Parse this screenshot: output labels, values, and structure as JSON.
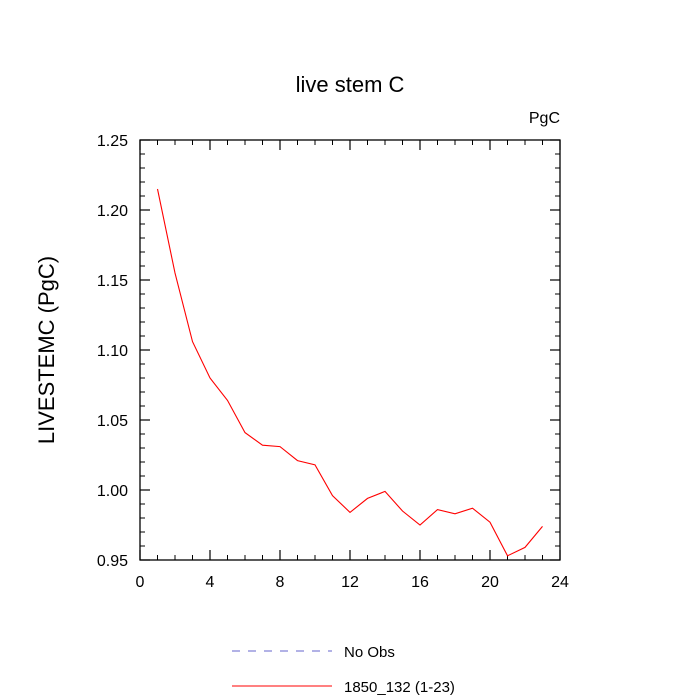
{
  "chart_data": {
    "type": "line",
    "title": "live stem C",
    "units_label": "PgC",
    "ylabel": "LIVESTEMC  (PgC)",
    "xlabel": "",
    "xlim": [
      0,
      24
    ],
    "ylim": [
      0.95,
      1.25
    ],
    "x_ticks": [
      0,
      4,
      8,
      12,
      16,
      20,
      24
    ],
    "y_ticks": [
      0.95,
      1.0,
      1.05,
      1.1,
      1.15,
      1.2,
      1.25
    ],
    "x_tick_labels": [
      "0",
      "4",
      "8",
      "12",
      "16",
      "20",
      "24"
    ],
    "y_tick_labels": [
      "0.95",
      "1.00",
      "1.05",
      "1.10",
      "1.15",
      "1.20",
      "1.25"
    ],
    "grid": false,
    "legend_position": "bottom",
    "series": [
      {
        "name": "1850_132 (1-23)",
        "color": "#ff0000",
        "dash": "solid",
        "x": [
          1,
          2,
          3,
          4,
          5,
          6,
          7,
          8,
          9,
          10,
          11,
          12,
          13,
          14,
          15,
          16,
          17,
          18,
          19,
          20,
          21,
          22,
          23
        ],
        "y": [
          1.215,
          1.155,
          1.106,
          1.08,
          1.064,
          1.041,
          1.032,
          1.031,
          1.021,
          1.018,
          0.996,
          0.984,
          0.994,
          0.999,
          0.985,
          0.975,
          0.986,
          0.983,
          0.987,
          0.977,
          0.953,
          0.959,
          0.974
        ]
      },
      {
        "name": "No Obs",
        "color": "#6666cc",
        "dash": "dashed",
        "x": [],
        "y": []
      }
    ]
  }
}
